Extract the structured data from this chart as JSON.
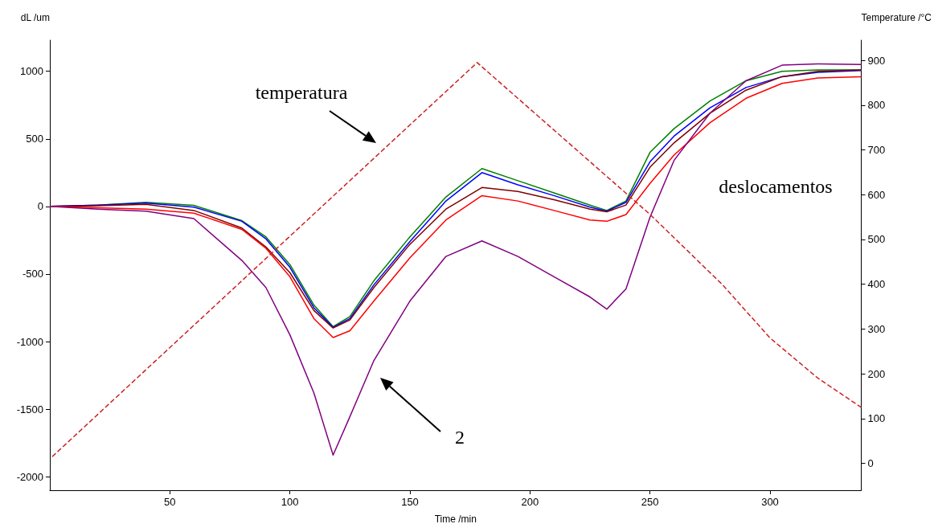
{
  "chart_data": {
    "type": "line",
    "xlabel": "Time /min",
    "ylabel": "dL /um",
    "y2label": "Temperature /°C",
    "x": [
      0,
      20,
      40,
      60,
      80,
      90,
      100,
      110,
      118,
      125,
      135,
      150,
      165,
      180,
      195,
      210,
      225,
      232,
      240,
      250,
      260,
      275,
      290,
      305,
      320,
      338
    ],
    "series": [
      {
        "color": "#008000",
        "values": [
          0,
          10,
          30,
          8,
          -105,
          -225,
          -430,
          -730,
          -890,
          -815,
          -550,
          -225,
          70,
          280,
          190,
          100,
          10,
          -30,
          40,
          400,
          575,
          780,
          930,
          1000,
          1010,
          1010
        ]
      },
      {
        "color": "#0000ff",
        "values": [
          0,
          10,
          25,
          -5,
          -110,
          -240,
          -450,
          -750,
          -895,
          -830,
          -580,
          -260,
          40,
          250,
          160,
          80,
          -5,
          -35,
          30,
          330,
          520,
          730,
          880,
          960,
          992,
          1005
        ]
      },
      {
        "color": "#800000",
        "values": [
          0,
          5,
          15,
          -30,
          -160,
          -300,
          -490,
          -770,
          -900,
          -840,
          -600,
          -280,
          -20,
          140,
          110,
          50,
          -20,
          -40,
          10,
          290,
          470,
          690,
          860,
          960,
          1000,
          1010
        ]
      },
      {
        "color": "#ff0000",
        "values": [
          0,
          -10,
          -20,
          -50,
          -170,
          -310,
          -520,
          -830,
          -970,
          -920,
          -700,
          -380,
          -100,
          80,
          40,
          -30,
          -100,
          -110,
          -60,
          170,
          380,
          620,
          800,
          910,
          950,
          960
        ]
      },
      {
        "color": "#800080",
        "values": [
          0,
          -20,
          -35,
          -90,
          -400,
          -600,
          -950,
          -1380,
          -1840,
          -1555,
          -1140,
          -700,
          -370,
          -255,
          -370,
          -520,
          -670,
          -760,
          -610,
          -80,
          340,
          690,
          930,
          1045,
          1055,
          1050
        ]
      },
      {
        "color": "#cc2222",
        "axis": "y2",
        "line_style": "dashed",
        "x": [
          1,
          178,
          250,
          280,
          300,
          320,
          338
        ],
        "values": [
          15,
          895,
          556,
          400,
          280,
          190,
          125
        ]
      }
    ],
    "annotations": [
      "temperatura",
      "deslocamentos",
      "2"
    ],
    "xlim": [
      0,
      338
    ],
    "xticks": [
      50,
      100,
      150,
      200,
      250,
      300
    ],
    "ylim": [
      -2100,
      1230
    ],
    "yticks": [
      -2000,
      -1500,
      -1000,
      -500,
      0,
      500,
      1000
    ],
    "y2lim": [
      -60,
      945
    ],
    "y2ticks": [
      0,
      100,
      200,
      300,
      400,
      500,
      600,
      700,
      800,
      900
    ],
    "grid": false,
    "marker": "none",
    "line_style": "solid"
  }
}
